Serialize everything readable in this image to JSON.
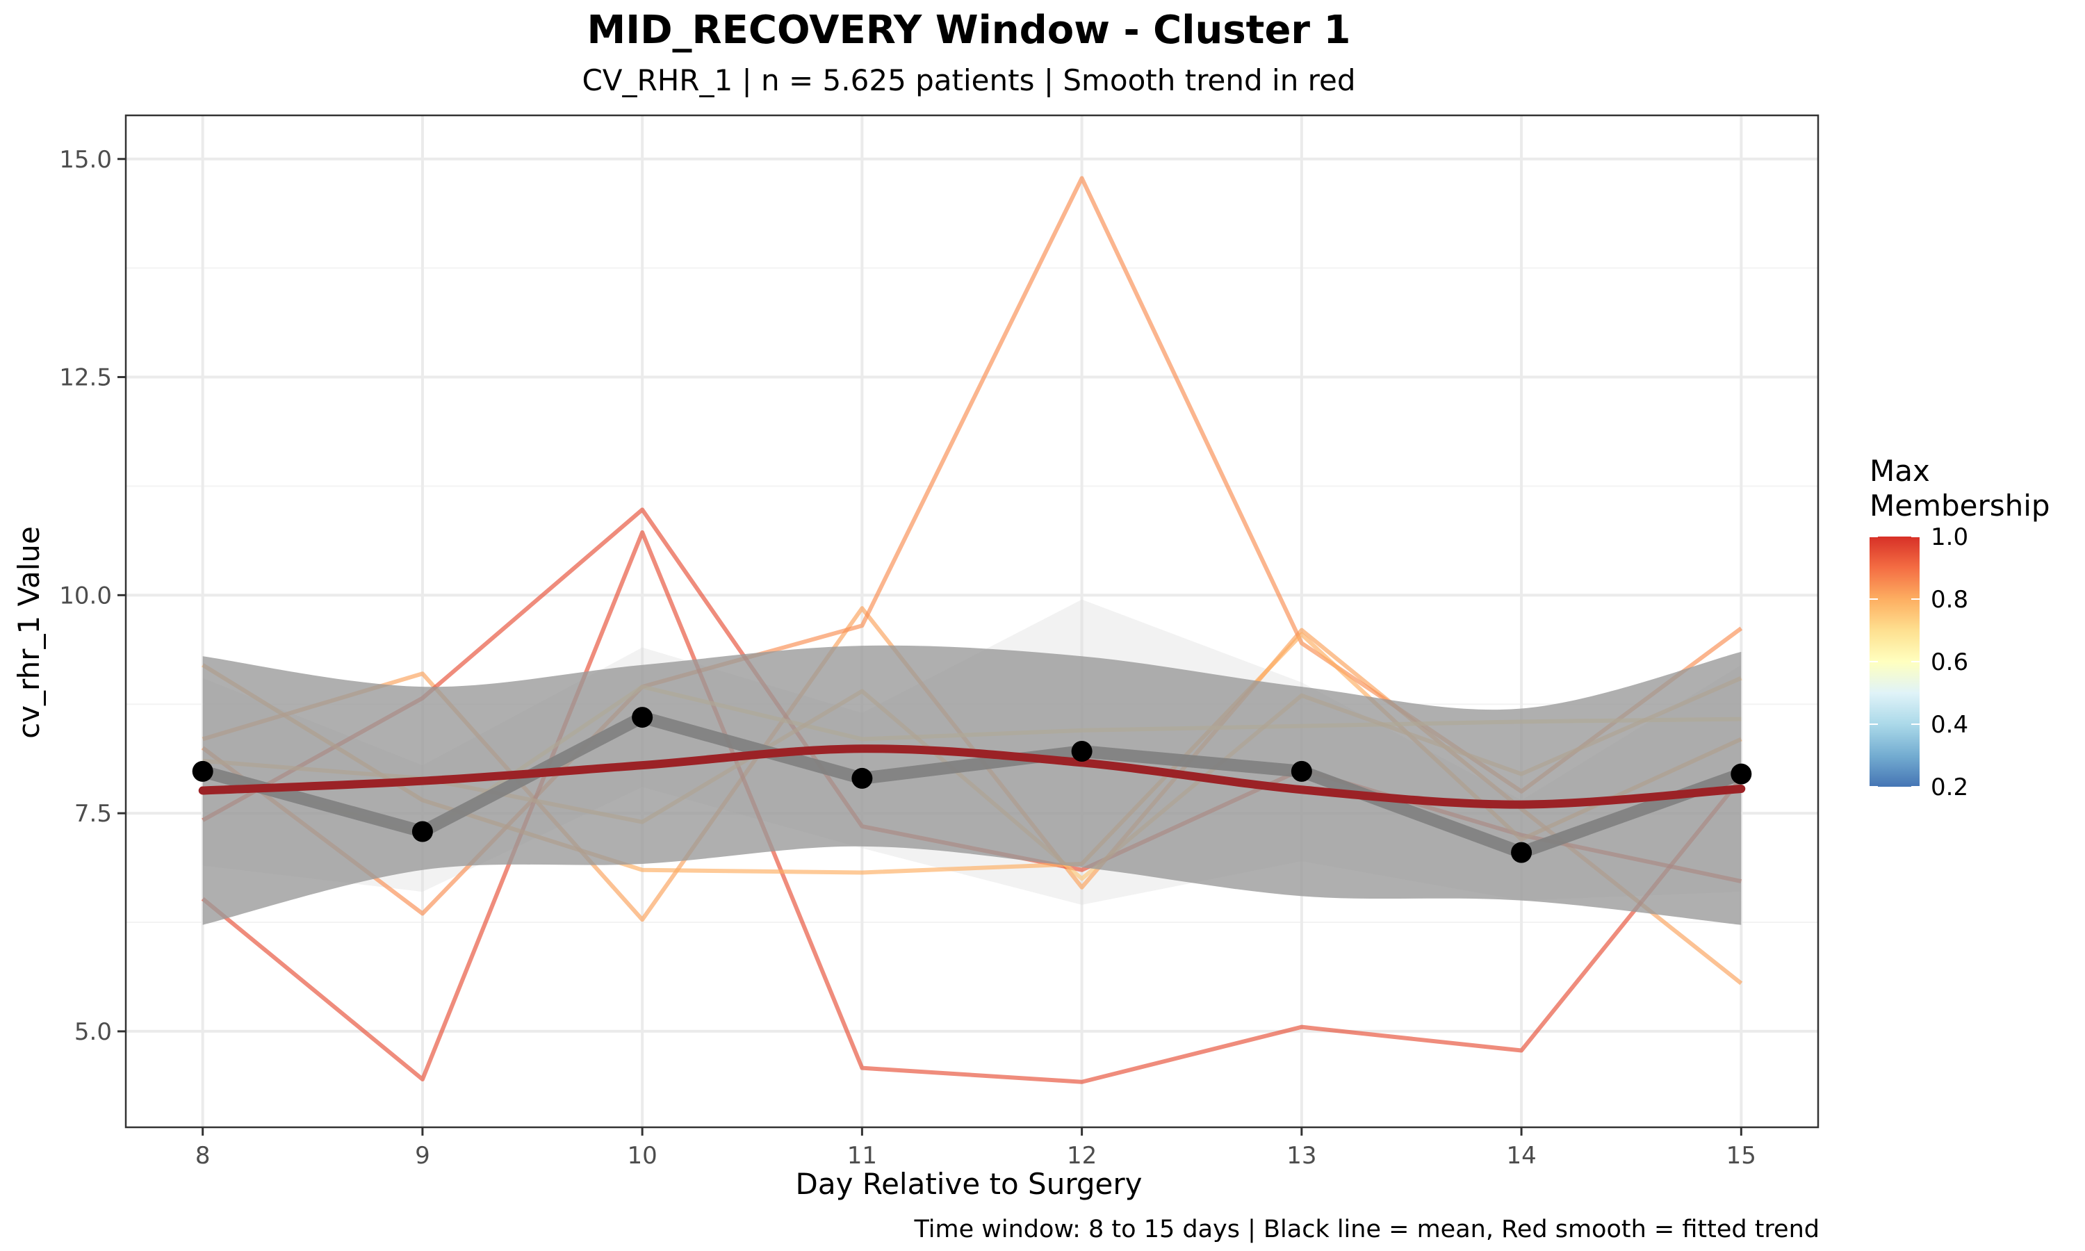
{
  "chart_data": {
    "type": "line",
    "title": "MID_RECOVERY Window - Cluster 1",
    "subtitle": "CV_RHR_1 | n = 5.625 patients | Smooth trend in red",
    "xlabel": "Day Relative to Surgery",
    "ylabel": "cv_rhr_1 Value",
    "caption": "Time window: 8 to 15 days | Black line = mean, Red smooth = fitted trend",
    "x": [
      8,
      9,
      10,
      11,
      12,
      13,
      14,
      15
    ],
    "xlim": [
      7.65,
      15.35
    ],
    "ylim": [
      3.9,
      15.5
    ],
    "x_ticks": [
      "8",
      "9",
      "10",
      "11",
      "12",
      "13",
      "14",
      "15"
    ],
    "y_ticks": [
      "5.0",
      "7.5",
      "10.0",
      "12.5",
      "15.0"
    ],
    "y_tick_values": [
      5.0,
      7.5,
      10.0,
      12.5,
      15.0
    ],
    "grid": true,
    "patients": [
      {
        "membership": 0.82,
        "values": [
          8.35,
          9.1,
          6.28,
          9.85,
          6.65,
          9.6,
          7.55,
          5.55
        ]
      },
      {
        "membership": 0.85,
        "values": [
          8.25,
          6.35,
          8.95,
          9.65,
          14.78,
          9.45,
          7.75,
          9.62
        ]
      },
      {
        "membership": 0.95,
        "values": [
          6.52,
          4.45,
          10.72,
          4.58,
          4.42,
          5.05,
          4.78,
          7.9
        ]
      },
      {
        "membership": 0.95,
        "values": [
          7.42,
          8.82,
          10.98,
          7.35,
          6.85,
          8.0,
          7.25,
          6.72
        ]
      },
      {
        "membership": 0.8,
        "values": [
          9.2,
          7.65,
          6.85,
          6.82,
          6.92,
          9.55,
          7.2,
          8.35
        ]
      },
      {
        "membership": 0.7,
        "values": [
          8.0,
          7.25,
          8.95,
          8.35,
          8.45,
          8.5,
          8.55,
          8.58
        ]
      },
      {
        "membership": 0.75,
        "values": [
          8.1,
          7.9,
          7.4,
          8.9,
          6.75,
          8.85,
          7.95,
          9.05
        ]
      }
    ],
    "mean": {
      "values": [
        7.98,
        7.29,
        8.6,
        7.9,
        8.21,
        7.98,
        7.05,
        7.95
      ],
      "color": "#000000"
    },
    "mean_ci_band": {
      "lower": [
        6.9,
        6.6,
        7.8,
        7.1,
        6.45,
        6.95,
        6.5,
        6.6
      ],
      "upper": [
        9.05,
        8.05,
        9.4,
        8.65,
        9.95,
        9.0,
        7.65,
        9.2
      ]
    },
    "smooth": {
      "values": [
        7.76,
        7.87,
        8.05,
        8.24,
        8.08,
        7.77,
        7.6,
        7.78
      ],
      "color": "#9b2226"
    },
    "smooth_band": {
      "lower": [
        6.22,
        6.85,
        6.92,
        7.12,
        6.88,
        6.55,
        6.5,
        6.22
      ],
      "upper": [
        9.3,
        8.95,
        9.2,
        9.42,
        9.3,
        8.95,
        8.7,
        9.35
      ]
    },
    "legend": {
      "title_line1": "Max",
      "title_line2": "Membership",
      "labels": [
        "1.0",
        "0.8",
        "0.6",
        "0.4",
        "0.2"
      ],
      "range": [
        0.2,
        1.0
      ],
      "position": "right",
      "colors": [
        "#d73027",
        "#f46d43",
        "#fdae61",
        "#fee090",
        "#ffffbf",
        "#e0f3f8",
        "#abd9e9",
        "#74add1",
        "#4575b4"
      ]
    }
  }
}
